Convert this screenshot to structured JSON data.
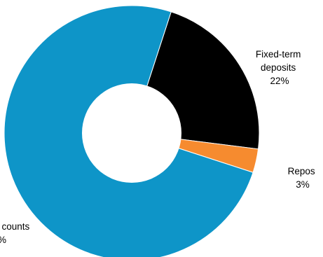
{
  "chart_data": {
    "type": "pie",
    "variant": "donut",
    "title": "",
    "series": [
      {
        "name": "",
        "slices": [
          {
            "label_lines": [
              "Fixed-term",
              "deposits"
            ],
            "label": "Fixed-term deposits",
            "value": 22,
            "value_label": "22%",
            "color": "#000000"
          },
          {
            "label_lines": [
              "Repos"
            ],
            "label": "Repos",
            "value": 3,
            "value_label": "3%",
            "color": "#f68b2f"
          },
          {
            "label_lines": [
              "counts"
            ],
            "label": "counts",
            "value": 75,
            "value_label": "%",
            "color": "#0e95c8"
          }
        ]
      }
    ],
    "legend": "none"
  }
}
